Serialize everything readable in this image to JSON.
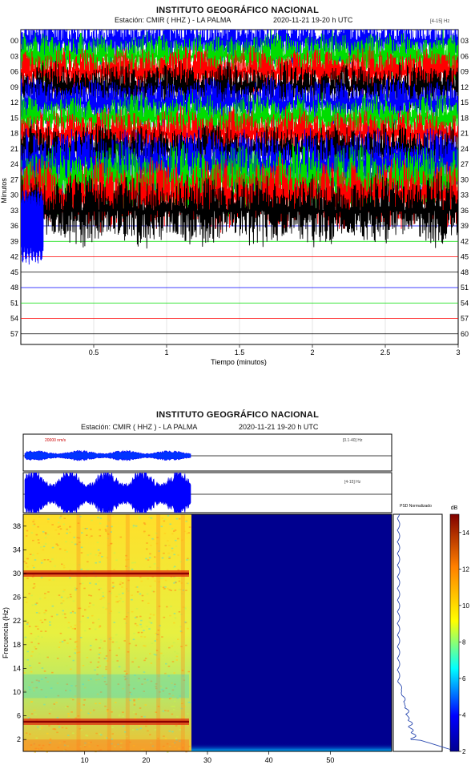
{
  "top_panel": {
    "title": "INSTITUTO GEOGRÁFICO NACIONAL",
    "station": "Estación: CMIR ( HHZ ) - LA PALMA",
    "datetime": "2020-11-21  19-20 h UTC",
    "filter": "[4-15] Hz",
    "ylabel": "Minutos",
    "xlabel": "Tiempo (minutos)"
  },
  "bottom_panel": {
    "title": "INSTITUTO GEOGRÁFICO NACIONAL",
    "station": "Estación: CMIR ( HHZ ) - LA PALMA",
    "datetime": "2020-11-21  19-20 h UTC",
    "trace1_scale": "20000 nm/s",
    "trace1_filter": "[0.1-40] Hz",
    "trace2_filter": "[4-15] Hz",
    "psd_label": "PSD Normalizado",
    "db_label": "dB",
    "ylabel": "Frecuencia (Hz)"
  },
  "chart_data": [
    {
      "type": "line",
      "title": "INSTITUTO GEOGRÁFICO NACIONAL",
      "xlabel": "Tiempo (minutos)",
      "ylabel": "Minutos",
      "xlim": [
        0,
        3
      ],
      "x_ticks": [
        "0.5",
        "1",
        "1.5",
        "2",
        "2.5",
        "3"
      ],
      "x_tick_values": [
        0.5,
        1,
        1.5,
        2,
        2.5,
        3
      ],
      "y_ticks_left": [
        "00",
        "03",
        "06",
        "09",
        "12",
        "15",
        "18",
        "21",
        "24",
        "27",
        "30",
        "33",
        "36",
        "39",
        "42",
        "45",
        "48",
        "51",
        "54",
        "57"
      ],
      "y_ticks_right": [
        "03",
        "06",
        "09",
        "12",
        "15",
        "18",
        "21",
        "24",
        "27",
        "30",
        "33",
        "36",
        "39",
        "42",
        "45",
        "48",
        "51",
        "54",
        "57",
        "60"
      ],
      "line_colors": [
        "#0000ff",
        "#00dd00",
        "#ff0000",
        "#000000"
      ],
      "active_rows": 13,
      "grid": true
    },
    {
      "type": "heatmap",
      "ylabel": "Frecuencia (Hz)",
      "x_ticks": [
        "10",
        "20",
        "30",
        "40",
        "50"
      ],
      "x_tick_values": [
        10,
        20,
        30,
        40,
        50
      ],
      "xlim": [
        0,
        60
      ],
      "y_ticks": [
        "2",
        "6",
        "10",
        "14",
        "18",
        "22",
        "26",
        "30",
        "34",
        "38"
      ],
      "y_tick_values": [
        2,
        6,
        10,
        14,
        18,
        22,
        26,
        30,
        34,
        38
      ],
      "ylim": [
        0,
        40
      ],
      "data_end_minute": 27,
      "strong_bands_hz": [
        5,
        30
      ],
      "colorbar_ticks": [
        "2",
        "4",
        "6",
        "8",
        "10",
        "12",
        "14"
      ],
      "colorbar_tick_values": [
        2,
        4,
        6,
        8,
        10,
        12,
        14
      ],
      "colorbar_range": [
        2,
        15
      ]
    }
  ]
}
